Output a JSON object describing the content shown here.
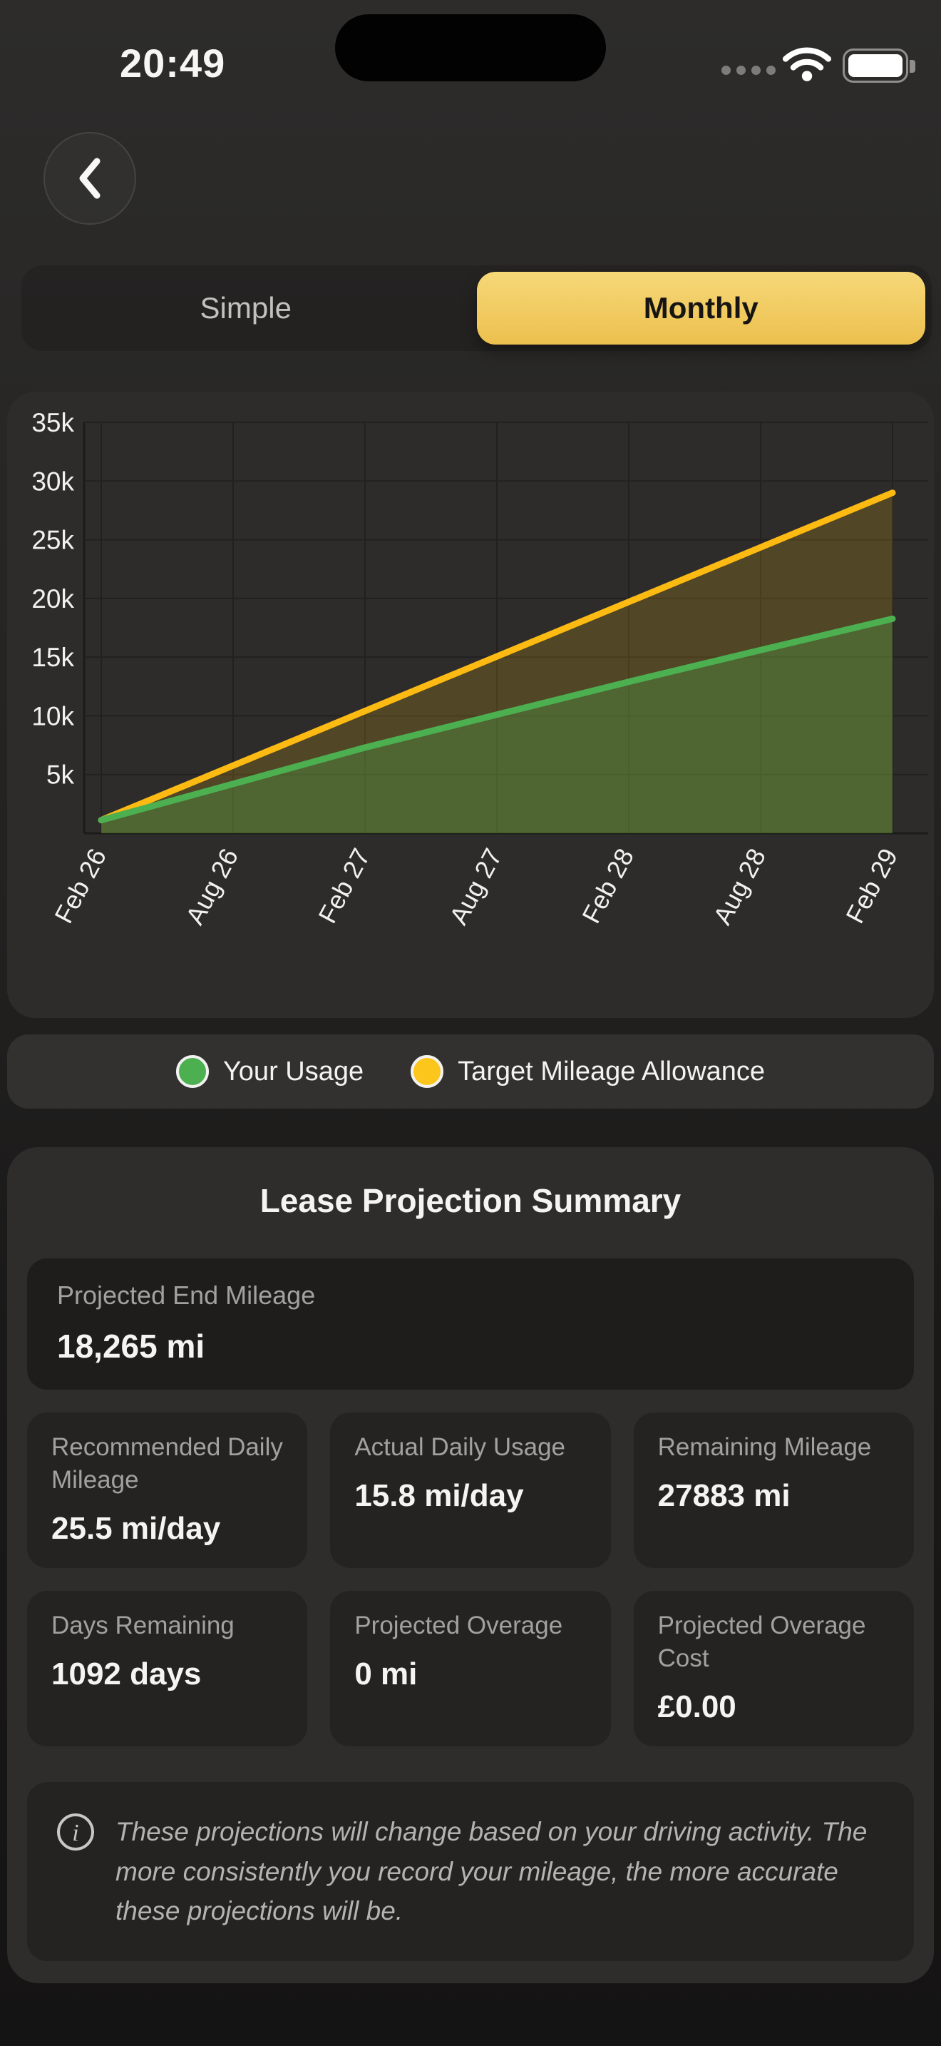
{
  "status_bar": {
    "time": "20:49",
    "icons": [
      "cellular-dots-icon",
      "wifi-icon",
      "battery-full-icon"
    ]
  },
  "view_toggle": {
    "options": [
      "Simple",
      "Monthly"
    ],
    "selected": "Monthly"
  },
  "chart_data": {
    "type": "area",
    "x_labels": [
      "Feb 26",
      "Aug 26",
      "Feb 27",
      "Aug 27",
      "Feb 28",
      "Aug 28",
      "Feb 29"
    ],
    "y_tick_step": 5000,
    "y_tick_labels": [
      "5k",
      "10k",
      "15k",
      "20k",
      "25k",
      "30k",
      "35k"
    ],
    "ylim": [
      0,
      35000
    ],
    "grid": true,
    "legend_position": "bottom",
    "series": [
      {
        "name": "Your Usage",
        "color": "#4caf50",
        "fill": "rgba(76,175,80,0.30)",
        "values": [
          1117,
          4200,
          7300,
          10100,
          12900,
          15600,
          18265
        ]
      },
      {
        "name": "Target Mileage Allowance",
        "color": "#fcba12",
        "fill": "rgba(252,186,18,0.18)",
        "values": [
          1117,
          5764,
          10411,
          15058,
          19705,
          24352,
          29000
        ]
      }
    ]
  },
  "legend": {
    "items": [
      {
        "label": "Your Usage",
        "color": "#4caf50"
      },
      {
        "label": "Target Mileage Allowance",
        "color": "#fdc61c"
      }
    ]
  },
  "summary": {
    "title": "Lease Projection Summary",
    "hero": {
      "label": "Projected End Mileage",
      "value": "18,265 mi"
    },
    "stats": [
      {
        "label": "Recommended Daily Mileage",
        "value": "25.5 mi/day"
      },
      {
        "label": "Actual Daily Usage",
        "value": "15.8 mi/day"
      },
      {
        "label": "Remaining Mileage",
        "value": "27883 mi"
      },
      {
        "label": "Days Remaining",
        "value": "1092 days"
      },
      {
        "label": "Projected Overage",
        "value": "0 mi"
      },
      {
        "label": "Projected Overage Cost",
        "value": "£0.00"
      }
    ],
    "note": "These projections will change based on your driving activity. The more consistently you record your mileage, the more accurate these projections will be."
  },
  "colors": {
    "tab_selected_top": "#f6d878",
    "tab_selected_bottom": "#ecc04e",
    "usage_green": "#4caf50",
    "allowance_yellow": "#fcba12"
  }
}
